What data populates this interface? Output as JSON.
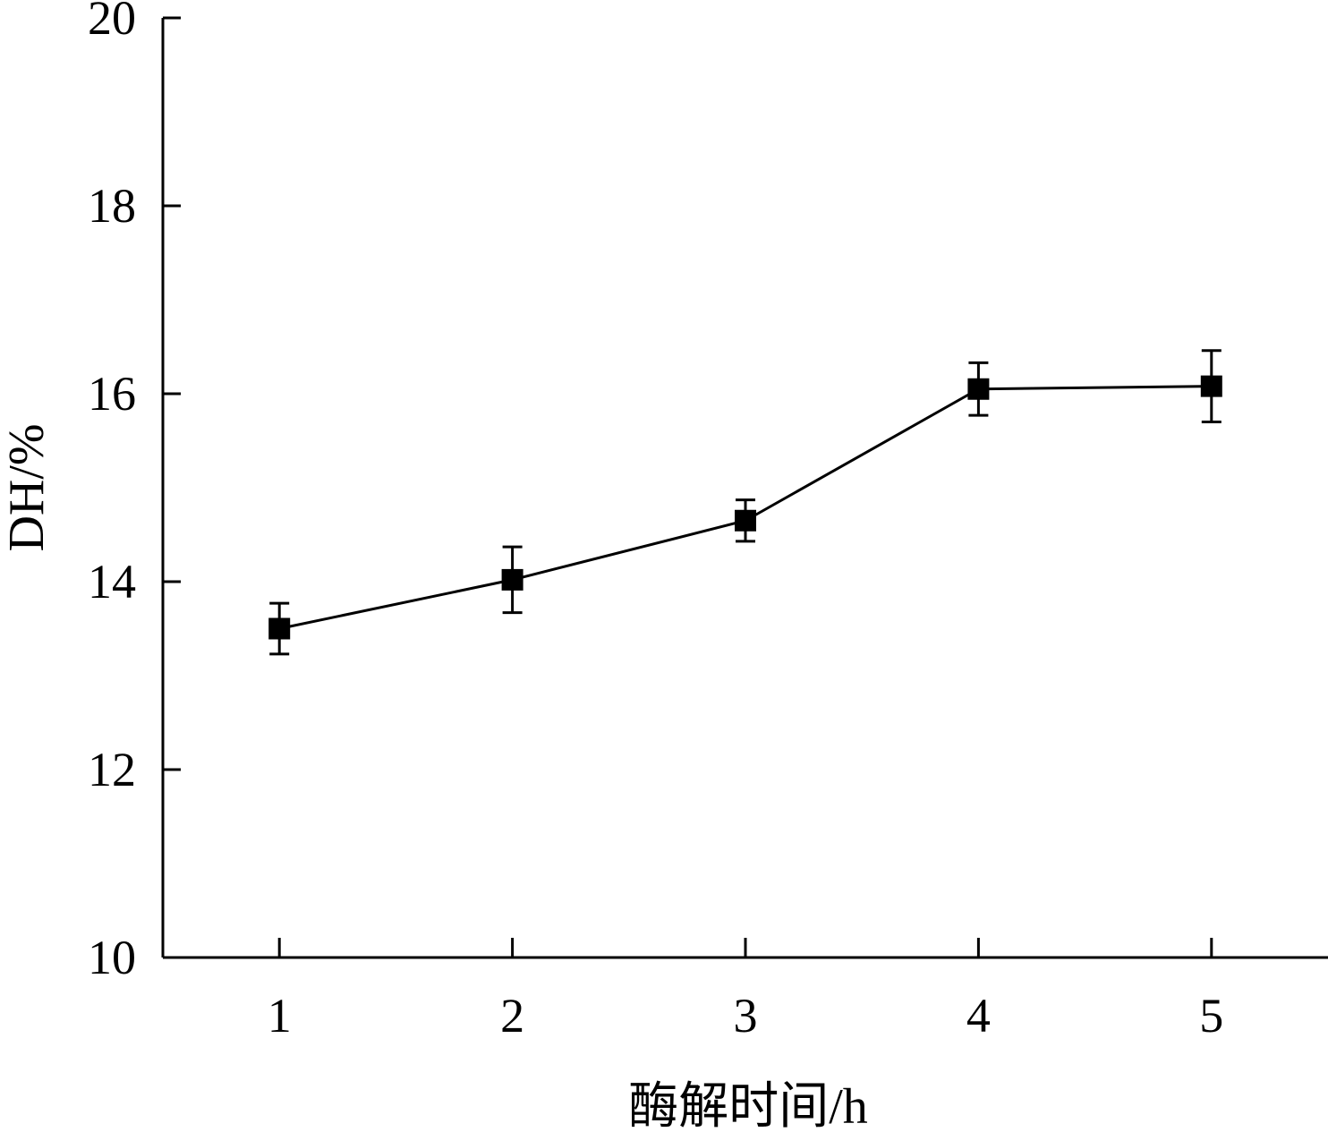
{
  "chart_data": {
    "type": "line",
    "title": "",
    "xlabel": "酶解时间/h",
    "ylabel": "DH/%",
    "x": [
      1,
      2,
      3,
      4,
      5
    ],
    "xlim": [
      0.5,
      5.5
    ],
    "ylim": [
      10,
      20
    ],
    "xticks": [
      "1",
      "2",
      "3",
      "4",
      "5"
    ],
    "yticks": [
      "10",
      "12",
      "14",
      "16",
      "18",
      "20"
    ],
    "grid": false,
    "legend": "none",
    "series": [
      {
        "values": [
          13.5,
          14.02,
          14.65,
          16.05,
          16.08
        ],
        "errors": [
          0.27,
          0.35,
          0.22,
          0.28,
          0.38
        ],
        "marker": "square",
        "color": "#000000"
      }
    ]
  }
}
